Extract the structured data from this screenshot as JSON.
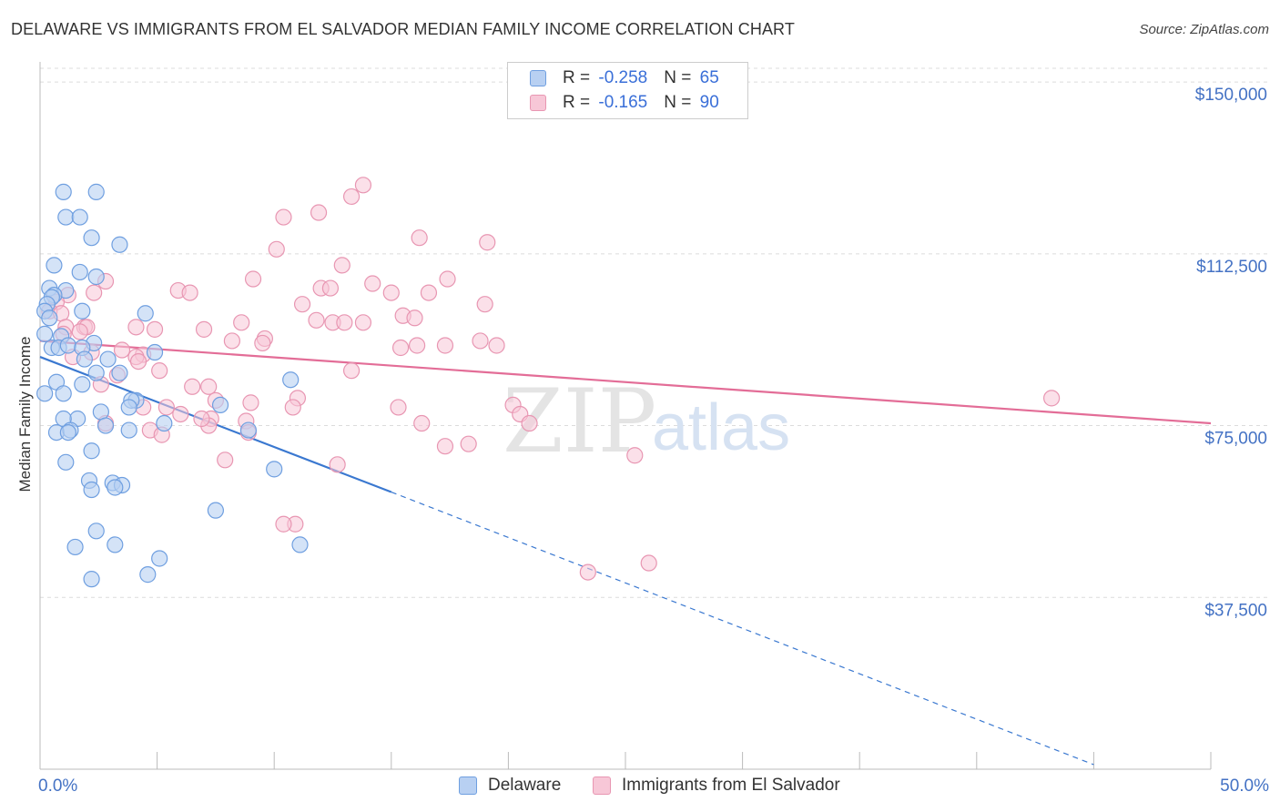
{
  "header": {
    "title": "DELAWARE VS IMMIGRANTS FROM EL SALVADOR MEDIAN FAMILY INCOME CORRELATION CHART",
    "source": "Source: ZipAtlas.com"
  },
  "legend": {
    "rows": [
      {
        "r_label": "R = ",
        "r_value": "-0.258",
        "n_label": "N = ",
        "n_value": "65"
      },
      {
        "r_label": "R = ",
        "r_value": "-0.165",
        "n_label": "N = ",
        "n_value": "90"
      }
    ]
  },
  "watermark": {
    "zip": "ZIP",
    "atlas": "atlas"
  },
  "colors": {
    "delaware_fill": "#b8d0f2",
    "delaware_stroke": "#6f9fe0",
    "delaware_line": "#3a78d0",
    "elsalvador_fill": "#f7c7d7",
    "elsalvador_stroke": "#e896b2",
    "elsalvador_line": "#e36d97",
    "tick_label": "#4472c4",
    "grid": "#dcdcdc"
  },
  "chart_data": {
    "type": "scatter",
    "title": "DELAWARE VS IMMIGRANTS FROM EL SALVADOR MEDIAN FAMILY INCOME CORRELATION CHART",
    "xlabel": "",
    "ylabel": "Median Family Income",
    "xlim": [
      0,
      50
    ],
    "ylim": [
      0,
      153000
    ],
    "x_tick_labels": [
      "0.0%",
      "50.0%"
    ],
    "y_ticks": [
      {
        "value": 37500,
        "label": "$37,500"
      },
      {
        "value": 75000,
        "label": "$75,000"
      },
      {
        "value": 112500,
        "label": "$112,500"
      },
      {
        "value": 150000,
        "label": "$150,000"
      }
    ],
    "legend_position": "top-center",
    "series": [
      {
        "name": "Delaware",
        "r": -0.258,
        "n": 65,
        "trend": {
          "x1": 0,
          "y1": 90000,
          "x2": 15,
          "y2": 60500,
          "dashed_to_x": 45,
          "dashed_to_y": 1000
        },
        "points": [
          [
            1.0,
            126000
          ],
          [
            1.1,
            120500
          ],
          [
            1.7,
            120500
          ],
          [
            2.4,
            126000
          ],
          [
            2.2,
            116000
          ],
          [
            3.4,
            114500
          ],
          [
            0.6,
            110000
          ],
          [
            1.7,
            108500
          ],
          [
            2.4,
            107500
          ],
          [
            0.4,
            105000
          ],
          [
            1.1,
            104500
          ],
          [
            0.6,
            103500
          ],
          [
            0.5,
            103000
          ],
          [
            0.3,
            101500
          ],
          [
            0.2,
            100000
          ],
          [
            1.8,
            100000
          ],
          [
            4.5,
            99500
          ],
          [
            0.2,
            95000
          ],
          [
            0.9,
            94500
          ],
          [
            2.3,
            93000
          ],
          [
            0.5,
            92000
          ],
          [
            0.8,
            92000
          ],
          [
            1.2,
            92500
          ],
          [
            1.8,
            92000
          ],
          [
            4.9,
            91000
          ],
          [
            1.9,
            89500
          ],
          [
            2.9,
            89500
          ],
          [
            2.4,
            86500
          ],
          [
            3.4,
            86500
          ],
          [
            0.7,
            84500
          ],
          [
            1.8,
            84000
          ],
          [
            10.7,
            85000
          ],
          [
            1.0,
            82000
          ],
          [
            0.2,
            82000
          ],
          [
            4.1,
            80500
          ],
          [
            3.9,
            80500
          ],
          [
            7.7,
            79500
          ],
          [
            3.8,
            79000
          ],
          [
            2.6,
            78000
          ],
          [
            1.6,
            76500
          ],
          [
            1.0,
            76500
          ],
          [
            5.3,
            75500
          ],
          [
            0.7,
            73500
          ],
          [
            1.3,
            74000
          ],
          [
            3.8,
            74000
          ],
          [
            8.9,
            74000
          ],
          [
            1.2,
            73500
          ],
          [
            2.8,
            75000
          ],
          [
            1.1,
            67000
          ],
          [
            2.2,
            69500
          ],
          [
            10.0,
            65500
          ],
          [
            2.1,
            63000
          ],
          [
            3.1,
            62500
          ],
          [
            3.5,
            62000
          ],
          [
            3.2,
            61500
          ],
          [
            2.2,
            61000
          ],
          [
            7.5,
            56500
          ],
          [
            2.4,
            52000
          ],
          [
            1.5,
            48500
          ],
          [
            3.2,
            49000
          ],
          [
            11.1,
            49000
          ],
          [
            5.1,
            46000
          ],
          [
            4.6,
            42500
          ],
          [
            2.2,
            41500
          ],
          [
            0.4,
            98500
          ]
        ]
      },
      {
        "name": "Immigrants from El Salvador",
        "r": -0.165,
        "n": 90,
        "trend": {
          "x1": 0,
          "y1": 93500,
          "x2": 50,
          "y2": 75500
        },
        "points": [
          [
            13.8,
            127500
          ],
          [
            13.3,
            125000
          ],
          [
            11.9,
            121500
          ],
          [
            10.4,
            120500
          ],
          [
            16.2,
            116000
          ],
          [
            19.1,
            115000
          ],
          [
            10.1,
            113500
          ],
          [
            12.9,
            110000
          ],
          [
            9.1,
            107000
          ],
          [
            17.4,
            107000
          ],
          [
            2.8,
            106500
          ],
          [
            14.2,
            106000
          ],
          [
            12.0,
            105000
          ],
          [
            12.4,
            105000
          ],
          [
            5.9,
            104500
          ],
          [
            6.4,
            104000
          ],
          [
            16.6,
            104000
          ],
          [
            2.3,
            104000
          ],
          [
            15.0,
            104000
          ],
          [
            1.2,
            103500
          ],
          [
            0.7,
            102000
          ],
          [
            11.2,
            101500
          ],
          [
            19.0,
            101500
          ],
          [
            0.4,
            100000
          ],
          [
            0.9,
            99500
          ],
          [
            15.5,
            99000
          ],
          [
            16.0,
            98500
          ],
          [
            11.8,
            98000
          ],
          [
            12.5,
            97500
          ],
          [
            13.0,
            97500
          ],
          [
            13.8,
            97500
          ],
          [
            8.6,
            97500
          ],
          [
            1.1,
            96500
          ],
          [
            1.9,
            96500
          ],
          [
            2.0,
            96500
          ],
          [
            4.1,
            96500
          ],
          [
            4.9,
            96000
          ],
          [
            7.0,
            96000
          ],
          [
            1.0,
            95000
          ],
          [
            9.6,
            94000
          ],
          [
            8.2,
            93500
          ],
          [
            18.8,
            93500
          ],
          [
            9.5,
            93000
          ],
          [
            16.1,
            92500
          ],
          [
            17.3,
            92500
          ],
          [
            19.5,
            92500
          ],
          [
            15.4,
            92000
          ],
          [
            3.5,
            91500
          ],
          [
            2.2,
            91000
          ],
          [
            4.4,
            90500
          ],
          [
            4.1,
            90000
          ],
          [
            1.4,
            90000
          ],
          [
            4.2,
            89000
          ],
          [
            5.1,
            87000
          ],
          [
            13.3,
            87000
          ],
          [
            1.7,
            95500
          ],
          [
            3.3,
            86000
          ],
          [
            6.5,
            83500
          ],
          [
            7.2,
            83500
          ],
          [
            2.6,
            84000
          ],
          [
            11.0,
            81000
          ],
          [
            7.5,
            80500
          ],
          [
            9.0,
            80000
          ],
          [
            20.2,
            79500
          ],
          [
            15.3,
            79000
          ],
          [
            4.4,
            79000
          ],
          [
            5.4,
            79000
          ],
          [
            10.8,
            79000
          ],
          [
            6.0,
            77500
          ],
          [
            20.5,
            77500
          ],
          [
            7.3,
            76500
          ],
          [
            8.8,
            76000
          ],
          [
            2.8,
            75500
          ],
          [
            7.2,
            75000
          ],
          [
            16.3,
            75500
          ],
          [
            20.9,
            75500
          ],
          [
            4.7,
            74000
          ],
          [
            8.9,
            73500
          ],
          [
            5.2,
            73000
          ],
          [
            17.3,
            70500
          ],
          [
            18.3,
            71000
          ],
          [
            25.4,
            68500
          ],
          [
            7.9,
            67500
          ],
          [
            12.7,
            66500
          ],
          [
            10.9,
            53500
          ],
          [
            10.4,
            53500
          ],
          [
            26.0,
            45000
          ],
          [
            23.4,
            43000
          ],
          [
            43.2,
            81000
          ],
          [
            6.9,
            76500
          ]
        ]
      }
    ]
  },
  "bottom_legend": {
    "items": [
      {
        "label": "Delaware"
      },
      {
        "label": "Immigrants from El Salvador"
      }
    ]
  }
}
